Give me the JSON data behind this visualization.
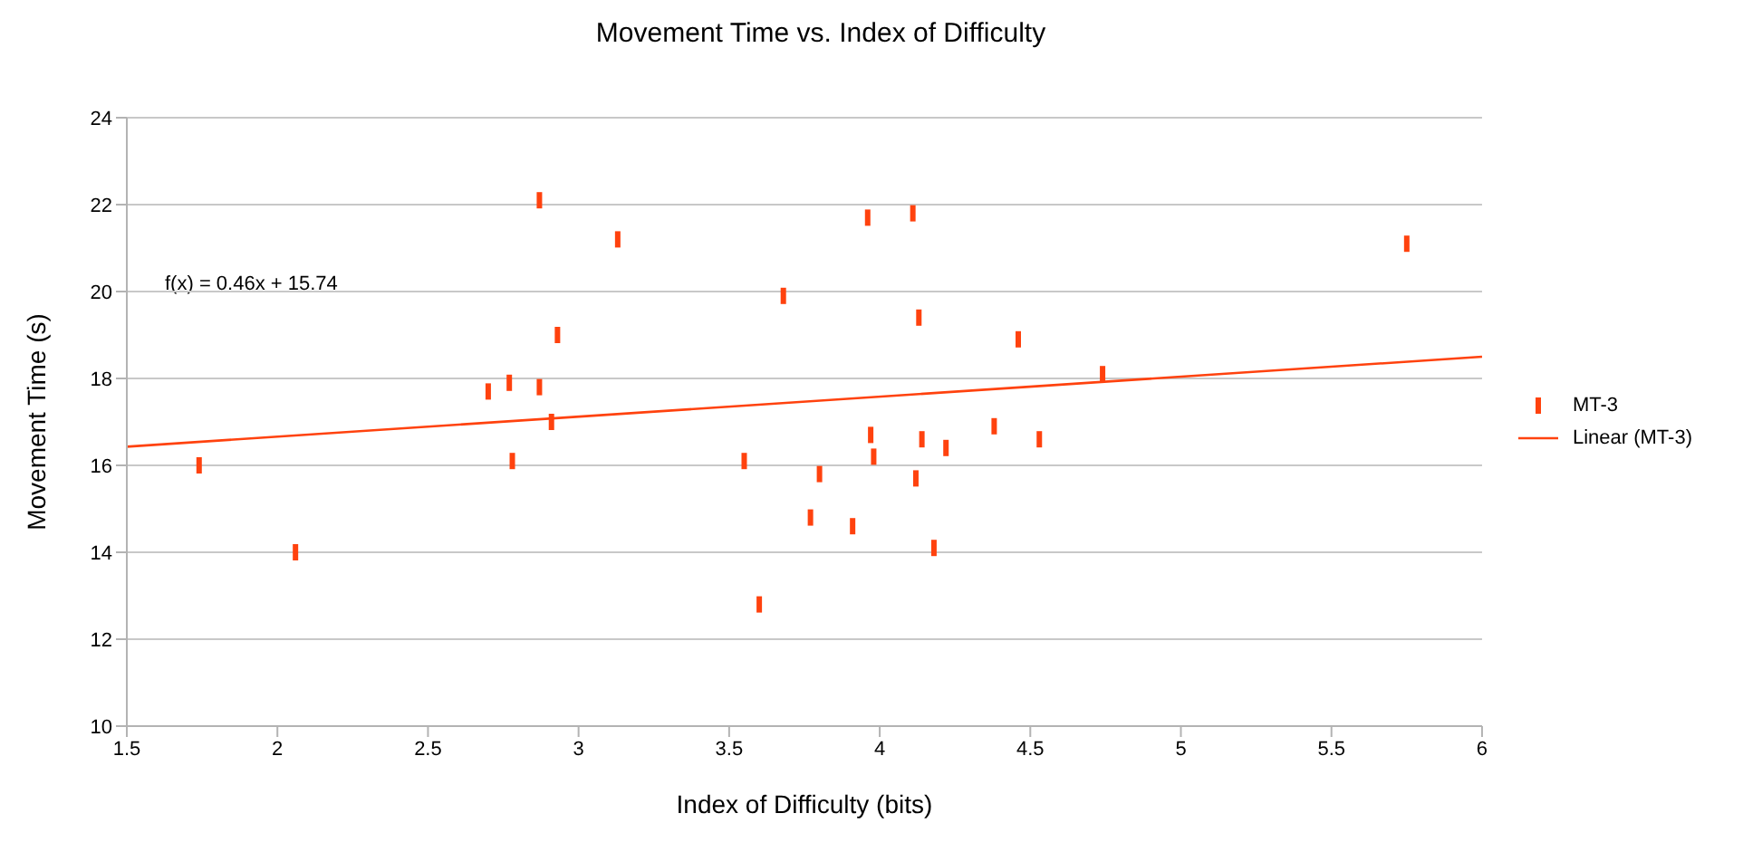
{
  "chart_data": {
    "type": "scatter",
    "title": "Movement Time vs. Index of Difficulty",
    "xlabel": "Index of Difficulty (bits)",
    "ylabel": "Movement Time (s)",
    "xlim": [
      1.5,
      6
    ],
    "xticks": [
      1.5,
      2,
      2.5,
      3,
      3.5,
      4,
      4.5,
      5,
      5.5,
      6
    ],
    "ylim": [
      10,
      24
    ],
    "yticks": [
      10,
      12,
      14,
      16,
      18,
      20,
      22,
      24
    ],
    "grid": "y",
    "legend": "right",
    "annotations": [
      "f(x) = 0.46x + 15.74"
    ],
    "series": [
      {
        "name": "MT-3",
        "type": "scatter",
        "marker": "square",
        "color": "#ff420e",
        "x": [
          1.74,
          2.06,
          2.7,
          2.77,
          2.78,
          2.87,
          2.87,
          2.91,
          2.93,
          3.13,
          3.55,
          3.6,
          3.68,
          3.77,
          3.8,
          3.91,
          3.96,
          3.97,
          3.98,
          4.11,
          4.12,
          4.13,
          4.14,
          4.18,
          4.22,
          4.38,
          4.46,
          4.53,
          4.74,
          5.75
        ],
        "values": [
          16.0,
          14.0,
          17.7,
          17.9,
          16.1,
          22.1,
          17.8,
          17.0,
          19.0,
          21.2,
          16.1,
          12.8,
          19.9,
          14.8,
          15.8,
          14.6,
          21.7,
          16.7,
          16.2,
          21.8,
          15.7,
          19.4,
          16.6,
          14.1,
          16.4,
          16.9,
          18.9,
          16.6,
          18.1,
          21.1
        ]
      },
      {
        "name": "Linear (MT-3)",
        "type": "line",
        "color": "#ff420e",
        "x": [
          1.5,
          6
        ],
        "values": [
          16.43,
          18.5
        ],
        "line_style": "solid"
      }
    ]
  }
}
